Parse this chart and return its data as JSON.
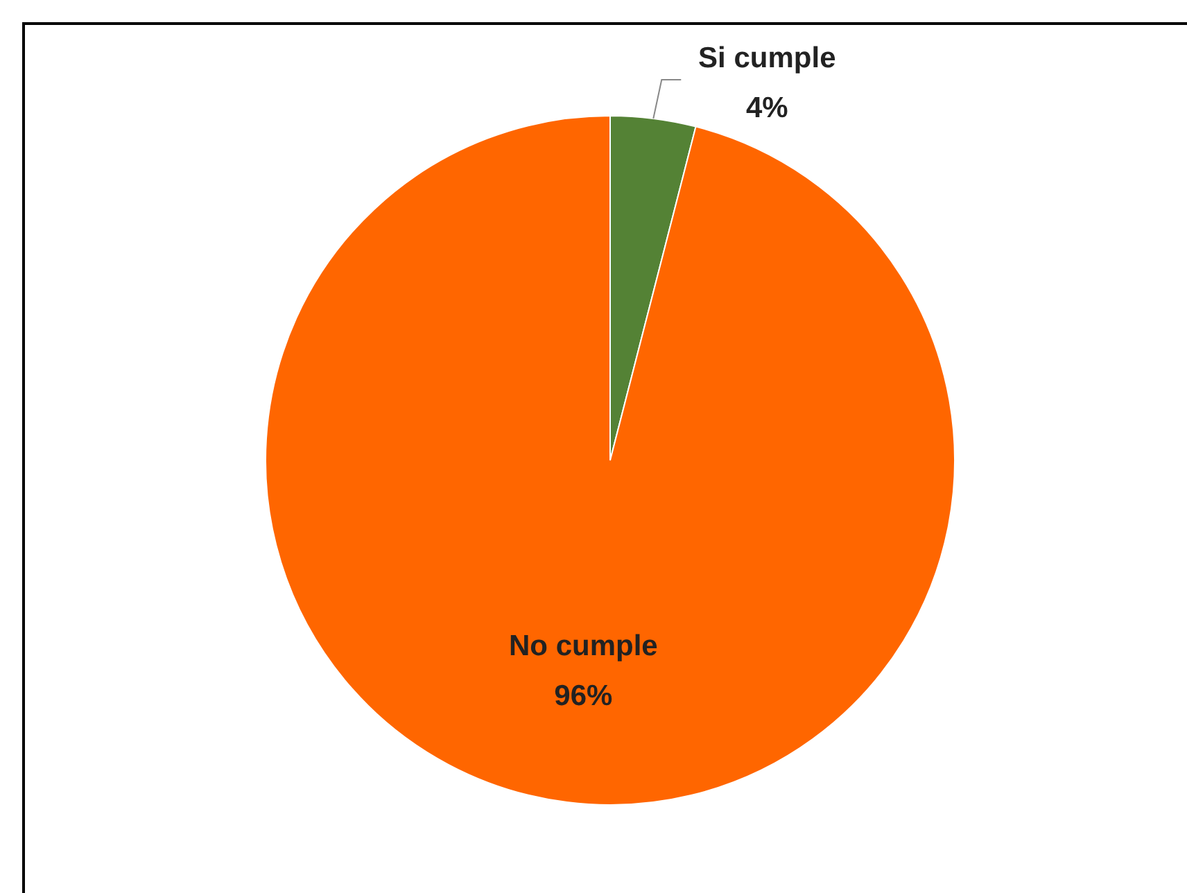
{
  "chart_data": {
    "type": "pie",
    "categories": [
      "Si cumple",
      "No cumple"
    ],
    "values": [
      4,
      96
    ],
    "colors": [
      "#548235",
      "#ff6600"
    ],
    "value_labels": [
      "4%",
      "96%"
    ],
    "legend": false
  }
}
